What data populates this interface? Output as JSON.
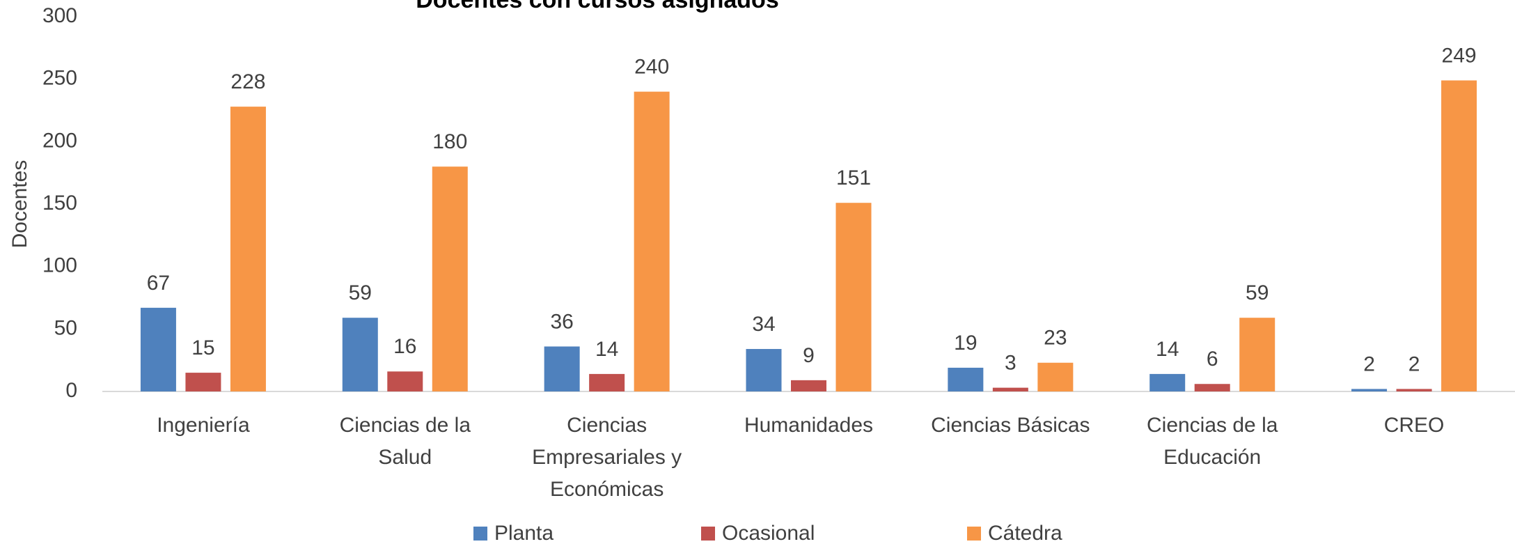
{
  "chart_data": {
    "type": "bar",
    "title": "Docentes con cursos asignados",
    "y_label": "Docentes",
    "categories": [
      "Ingeniería",
      "Ciencias de la Salud",
      "Ciencias Empresariales y Económicas",
      "Humanidades",
      "Ciencias Básicas",
      "Ciencias de la Educación",
      "CREO"
    ],
    "series": [
      {
        "name": "Planta",
        "color": "#4f81bd",
        "values": [
          67,
          59,
          36,
          34,
          19,
          14,
          2
        ]
      },
      {
        "name": "Ocasional",
        "color": "#c0504d",
        "values": [
          15,
          16,
          14,
          9,
          3,
          6,
          2
        ]
      },
      {
        "name": "Cátedra",
        "color": "#f79646",
        "values": [
          228,
          180,
          240,
          151,
          23,
          59,
          249
        ]
      }
    ],
    "ylim": [
      0,
      300
    ],
    "yticks": [
      0,
      50,
      100,
      150,
      200,
      250,
      300
    ],
    "grid": false,
    "legend": "bottom"
  }
}
